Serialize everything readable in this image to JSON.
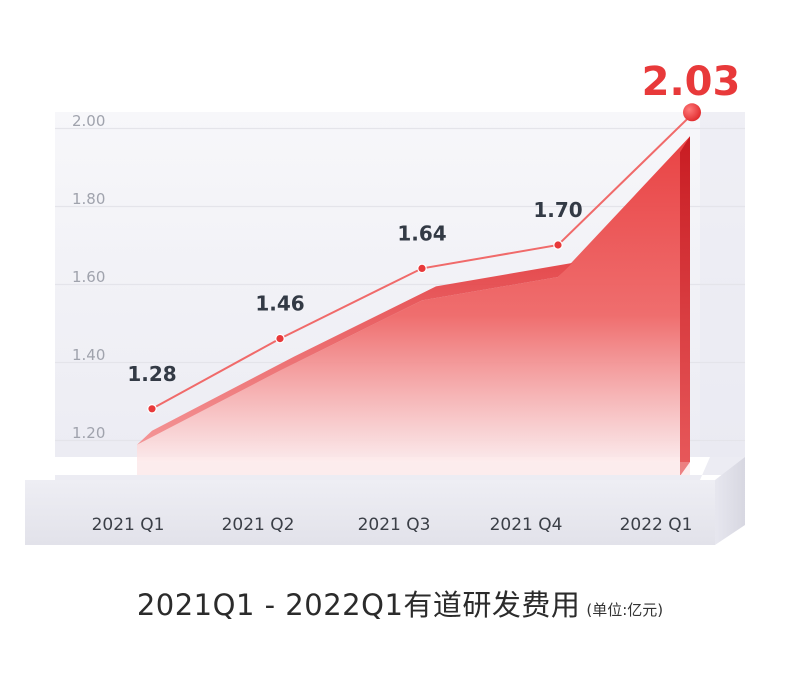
{
  "chart_data": {
    "type": "area",
    "categories": [
      "2021 Q1",
      "2021 Q2",
      "2021 Q3",
      "2021 Q4",
      "2022 Q1"
    ],
    "values": [
      1.28,
      1.46,
      1.64,
      1.7,
      2.03
    ],
    "data_labels": [
      "1.28",
      "1.46",
      "1.64",
      "1.70",
      "2.03"
    ],
    "y_ticks": [
      "1.20",
      "1.40",
      "1.60",
      "1.80",
      "2.00"
    ],
    "y_tick_values": [
      1.2,
      1.4,
      1.6,
      1.8,
      2.0
    ],
    "ylim": [
      1.2,
      2.0
    ],
    "grid": true,
    "colors": {
      "accent": "#e8393a",
      "line": "#f06a6a",
      "grid": "#e4e4ea",
      "tick_text": "#a0a3ad",
      "label_text": "#333a45"
    }
  },
  "caption": {
    "title": "2021Q1 - 2022Q1有道研发费用",
    "unit": "(单位:亿元)"
  }
}
